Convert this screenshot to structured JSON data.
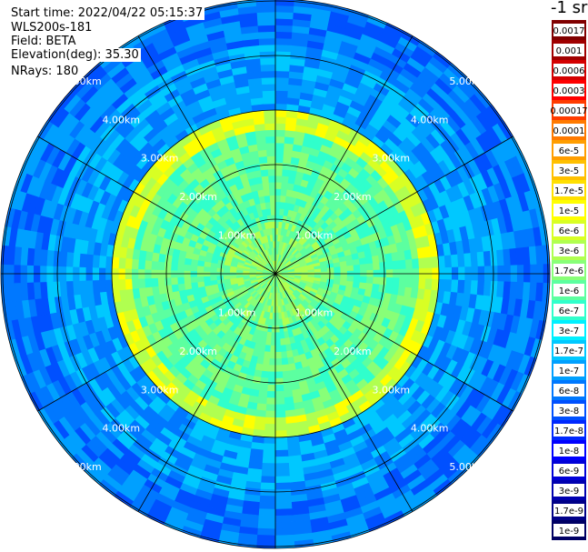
{
  "header": {
    "start_time": "Start time: 2022/04/22 05:15:37",
    "instrument": "WLS200s-181",
    "field": "Field: BETA",
    "elevation": "Elevation(deg): 35.30",
    "nrays": "NRays: 180"
  },
  "units_label": "-1 sr",
  "chart_data": {
    "type": "heatmap",
    "projection": "polar PPI",
    "field": "BETA",
    "rays": 180,
    "elevation_deg": 35.3,
    "range_rings": [
      {
        "label": "1.00km",
        "km": 1.0
      },
      {
        "label": "2.00km",
        "km": 2.0
      },
      {
        "label": "3.00km",
        "km": 3.0
      },
      {
        "label": "4.00km",
        "km": 4.0
      },
      {
        "label": "5.00km",
        "km": 5.0
      }
    ],
    "spoke_azimuths_deg": [
      0,
      30,
      60,
      90,
      120,
      150,
      180,
      210,
      240,
      270,
      300,
      330
    ],
    "colorbar": {
      "labels": [
        "0.0017",
        "0.001",
        "0.0006",
        "0.0003",
        "0.00017",
        "0.0001",
        "6e-5",
        "3e-5",
        "1.7e-5",
        "1e-5",
        "6e-6",
        "3e-6",
        "1.7e-6",
        "1e-6",
        "6e-7",
        "3e-7",
        "1.7e-7",
        "1e-7",
        "6e-8",
        "3e-8",
        "1.7e-8",
        "1e-8",
        "6e-9",
        "3e-9",
        "1.7e-9",
        "1e-9"
      ],
      "colors": [
        "#800000",
        "#a00000",
        "#d40000",
        "#ff0000",
        "#ff3c00",
        "#ff7a00",
        "#ff9e00",
        "#ffc000",
        "#ffe000",
        "#ffff00",
        "#d8ff24",
        "#b0ff50",
        "#88ff78",
        "#5cffa0",
        "#30ffcc",
        "#00f0ff",
        "#00c8ff",
        "#00a0ff",
        "#0078ff",
        "#0050ff",
        "#0028ff",
        "#0000ff",
        "#0000d8",
        "#0000b0",
        "#000088",
        "#000064"
      ]
    },
    "zones": [
      {
        "name": "core",
        "r_km": [
          0,
          1.0
        ],
        "level_index": 12
      },
      {
        "name": "inner",
        "r_km": [
          1.0,
          2.6
        ],
        "level_index": 13
      },
      {
        "name": "aerosol_ring_edge",
        "r_km": [
          2.6,
          3.0
        ],
        "level_index": 10
      },
      {
        "name": "middle",
        "r_km": [
          3.0,
          4.2
        ],
        "level_index": 17
      },
      {
        "name": "outer",
        "r_km": [
          4.2,
          5.8
        ],
        "level_index": 18
      }
    ]
  }
}
